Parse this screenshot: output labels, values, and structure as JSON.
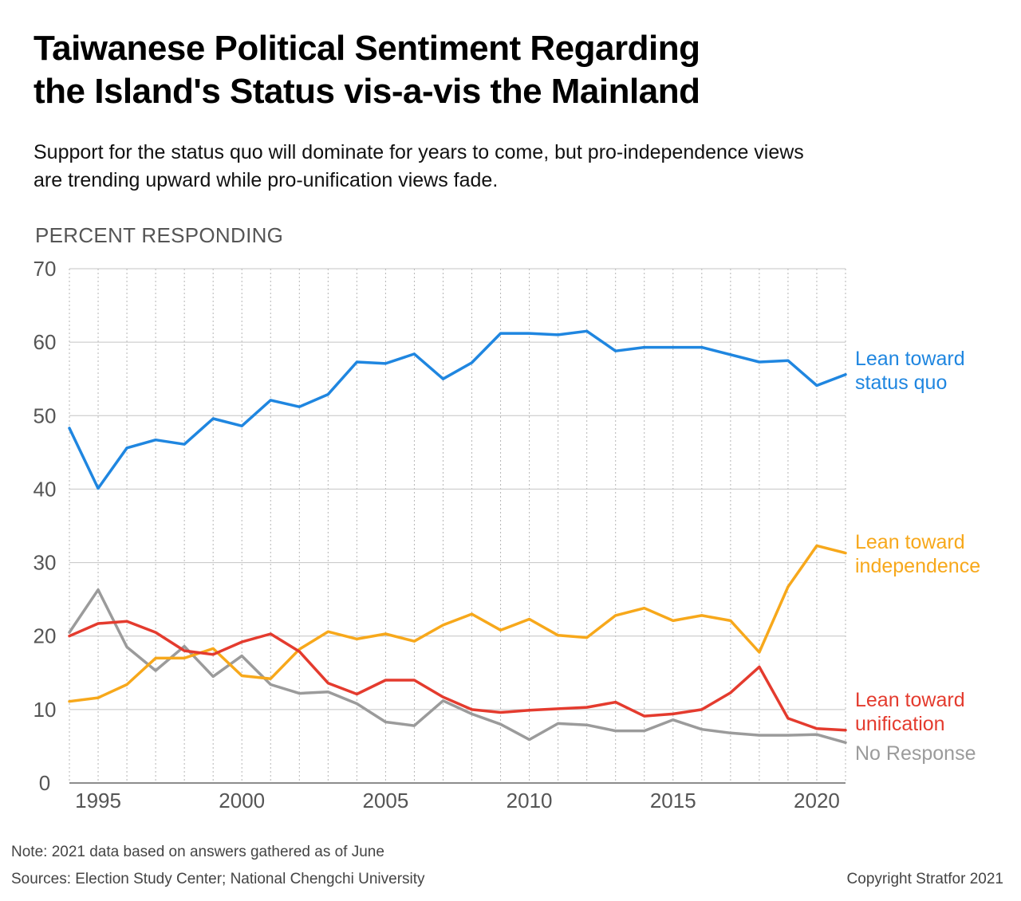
{
  "title_line1": "Taiwanese Political Sentiment Regarding",
  "title_line2": "the Island's Status vis-a-vis the Mainland",
  "subtitle_line1": "Support for the status quo will dominate for years to come, but pro-independence views",
  "subtitle_line2": "are trending upward while pro-unification views fade.",
  "note": "Note: 2021 data based on answers gathered as of June",
  "sources": "Sources: Election Study Center; National Chengchi University",
  "copyright": "Copyright Stratfor 2021",
  "chart_data": {
    "type": "line",
    "ylabel": "PERCENT RESPONDING",
    "xlabel": "",
    "ylim": [
      0,
      70
    ],
    "xlim": [
      1994,
      2021
    ],
    "y_ticks": [
      0,
      10,
      20,
      30,
      40,
      50,
      60,
      70
    ],
    "x_ticks": [
      1995,
      2000,
      2005,
      2010,
      2015,
      2020
    ],
    "grid": "horizontal solid, vertical dotted per year",
    "x": [
      1994,
      1995,
      1996,
      1997,
      1998,
      1999,
      2000,
      2001,
      2002,
      2003,
      2004,
      2005,
      2006,
      2007,
      2008,
      2009,
      2010,
      2011,
      2012,
      2013,
      2014,
      2015,
      2016,
      2017,
      2018,
      2019,
      2020,
      2021
    ],
    "series": [
      {
        "name": "Lean toward status quo",
        "label_lines": [
          "Lean toward",
          "status quo"
        ],
        "color": "#1f86e0",
        "values": [
          48.3,
          40.1,
          45.6,
          46.7,
          46.1,
          49.6,
          48.6,
          52.1,
          51.2,
          52.9,
          57.3,
          57.1,
          58.4,
          55.0,
          57.2,
          61.2,
          61.2,
          61.0,
          61.5,
          58.8,
          59.3,
          59.3,
          59.3,
          58.3,
          57.3,
          57.5,
          54.1,
          55.6
        ]
      },
      {
        "name": "Lean toward independence",
        "label_lines": [
          "Lean toward",
          "independence"
        ],
        "color": "#f7a81b",
        "values": [
          11.1,
          11.6,
          13.4,
          17.0,
          17.0,
          18.3,
          14.6,
          14.2,
          18.2,
          20.6,
          19.6,
          20.3,
          19.3,
          21.5,
          23.0,
          20.8,
          22.3,
          20.1,
          19.8,
          22.8,
          23.8,
          22.1,
          22.8,
          22.1,
          17.8,
          26.7,
          32.3,
          31.3
        ]
      },
      {
        "name": "Lean toward unification",
        "label_lines": [
          "Lean toward",
          "unification"
        ],
        "color": "#e43b2e",
        "values": [
          20.0,
          21.7,
          22.0,
          20.5,
          18.0,
          17.5,
          19.2,
          20.3,
          17.9,
          13.6,
          12.1,
          14.0,
          14.0,
          11.7,
          10.0,
          9.6,
          9.9,
          10.1,
          10.3,
          11.0,
          9.1,
          9.4,
          10.0,
          12.3,
          15.8,
          8.8,
          7.4,
          7.2
        ]
      },
      {
        "name": "No Response",
        "label_lines": [
          "No Response"
        ],
        "color": "#9b9b9b",
        "values": [
          20.5,
          26.3,
          18.5,
          15.3,
          18.6,
          14.5,
          17.3,
          13.4,
          12.2,
          12.4,
          10.8,
          8.3,
          7.8,
          11.2,
          9.4,
          8.0,
          5.9,
          8.1,
          7.9,
          7.1,
          7.1,
          8.6,
          7.3,
          6.8,
          6.5,
          6.5,
          6.6,
          5.5
        ]
      }
    ]
  }
}
